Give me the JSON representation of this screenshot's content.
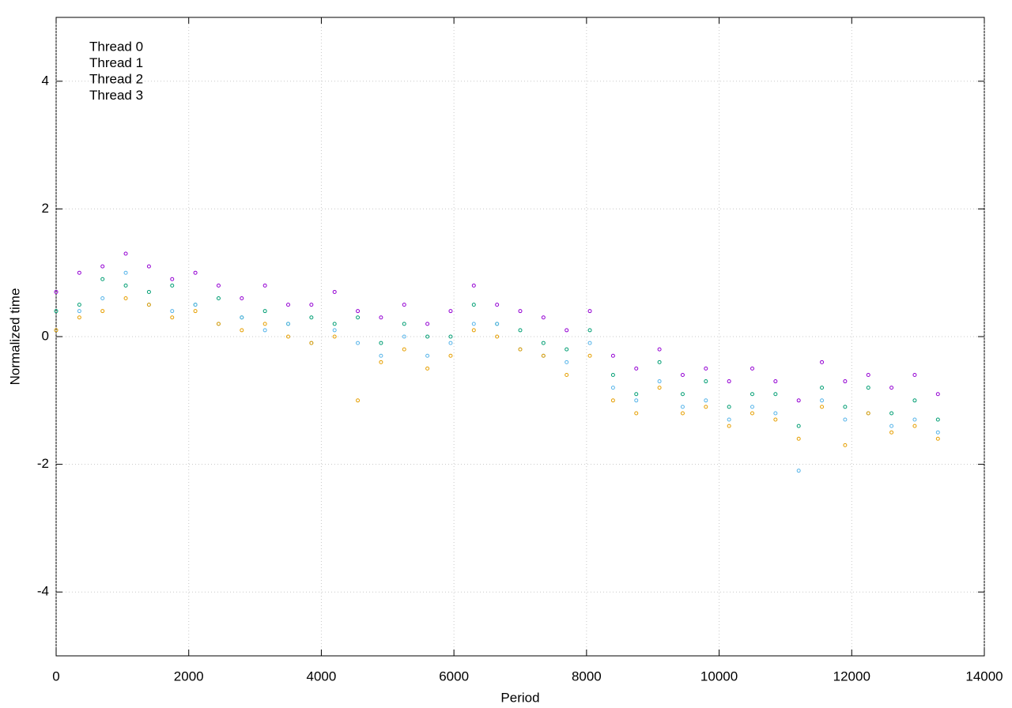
{
  "chart_data": {
    "type": "scatter",
    "xlabel": "Period",
    "ylabel": "Normalized time",
    "xlim": [
      0,
      14000
    ],
    "ylim": [
      -5,
      5
    ],
    "xticks": [
      0,
      2000,
      4000,
      6000,
      8000,
      10000,
      12000,
      14000
    ],
    "yticks": [
      -4,
      -2,
      0,
      2,
      4
    ],
    "grid": true,
    "legend": "top-left",
    "x": [
      0,
      350,
      700,
      1050,
      1400,
      1750,
      2100,
      2450,
      2800,
      3150,
      3500,
      3850,
      4200,
      4550,
      4900,
      5250,
      5600,
      5950,
      6300,
      6650,
      7000,
      7350,
      7700,
      8050,
      8400,
      8750,
      9100,
      9450,
      9800,
      10150,
      10500,
      10850,
      11200,
      11550,
      11900,
      12250,
      12600,
      12950,
      13300
    ],
    "series": [
      {
        "name": "Thread 0",
        "color": "#9400d3",
        "values": [
          0.7,
          1.0,
          1.1,
          1.3,
          1.1,
          0.9,
          1.0,
          0.8,
          0.6,
          0.8,
          0.5,
          0.5,
          0.7,
          0.4,
          0.3,
          0.5,
          0.2,
          0.4,
          0.8,
          0.5,
          0.4,
          0.3,
          0.1,
          0.4,
          -0.3,
          -0.5,
          -0.2,
          -0.6,
          -0.5,
          -0.7,
          -0.5,
          -0.7,
          -1.0,
          -0.4,
          -0.7,
          -0.6,
          -0.8,
          -0.6,
          -0.9
        ]
      },
      {
        "name": "Thread 1",
        "color": "#009e73",
        "values": [
          0.4,
          0.5,
          0.9,
          0.8,
          0.7,
          0.8,
          0.5,
          0.6,
          0.3,
          0.4,
          0.2,
          0.3,
          0.2,
          0.3,
          -0.1,
          0.2,
          0.0,
          0.0,
          0.5,
          0.2,
          0.1,
          -0.1,
          -0.2,
          0.1,
          -0.6,
          -0.9,
          -0.4,
          -0.9,
          -0.7,
          -1.1,
          -0.9,
          -0.9,
          -1.4,
          -0.8,
          -1.1,
          -0.8,
          -1.2,
          -1.0,
          -1.3
        ]
      },
      {
        "name": "Thread 2",
        "color": "#56b4e9",
        "values": [
          0.1,
          0.4,
          0.6,
          1.0,
          0.5,
          0.4,
          0.5,
          0.2,
          0.3,
          0.1,
          0.2,
          -0.1,
          0.1,
          -0.1,
          -0.3,
          0.0,
          -0.3,
          -0.1,
          0.2,
          0.2,
          -0.2,
          -0.3,
          -0.4,
          -0.1,
          -0.8,
          -1.0,
          -0.7,
          -1.1,
          -1.0,
          -1.3,
          -1.1,
          -1.2,
          -2.1,
          -1.0,
          -1.3,
          -1.2,
          -1.4,
          -1.3,
          -1.5
        ]
      },
      {
        "name": "Thread 3",
        "color": "#e69f00",
        "values": [
          0.1,
          0.3,
          0.4,
          0.6,
          0.5,
          0.3,
          0.4,
          0.2,
          0.1,
          0.2,
          0.0,
          -0.1,
          0.0,
          -1.0,
          -0.4,
          -0.2,
          -0.5,
          -0.3,
          0.1,
          0.0,
          -0.2,
          -0.3,
          -0.6,
          -0.3,
          -1.0,
          -1.2,
          -0.8,
          -1.2,
          -1.1,
          -1.4,
          -1.2,
          -1.3,
          -1.6,
          -1.1,
          -1.7,
          -1.2,
          -1.5,
          -1.4,
          -1.6
        ]
      }
    ]
  }
}
